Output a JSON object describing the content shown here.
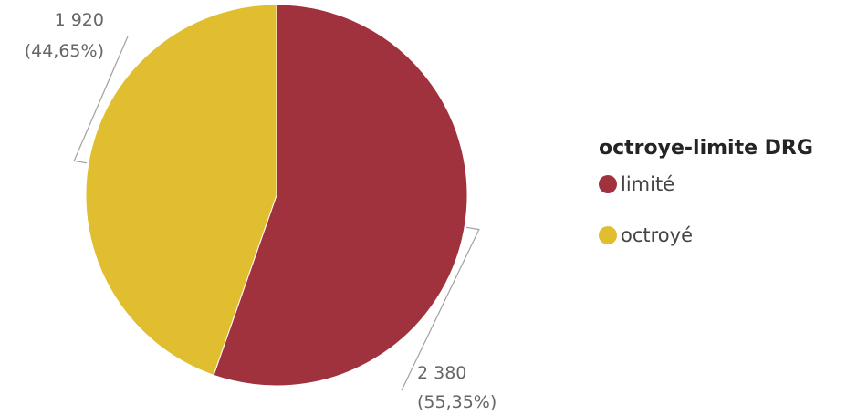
{
  "chart_data": {
    "type": "pie",
    "categories": [
      "limité",
      "octroyé"
    ],
    "values": [
      2380,
      1920
    ],
    "percent_labels": [
      "(55,35%)",
      "(44,65%)"
    ],
    "value_labels": [
      "2 380",
      "1 920"
    ],
    "colors": [
      "#A0323E",
      "#E0BE30"
    ],
    "legend_title": "octroye-limite DRG",
    "legend_position": "right"
  }
}
